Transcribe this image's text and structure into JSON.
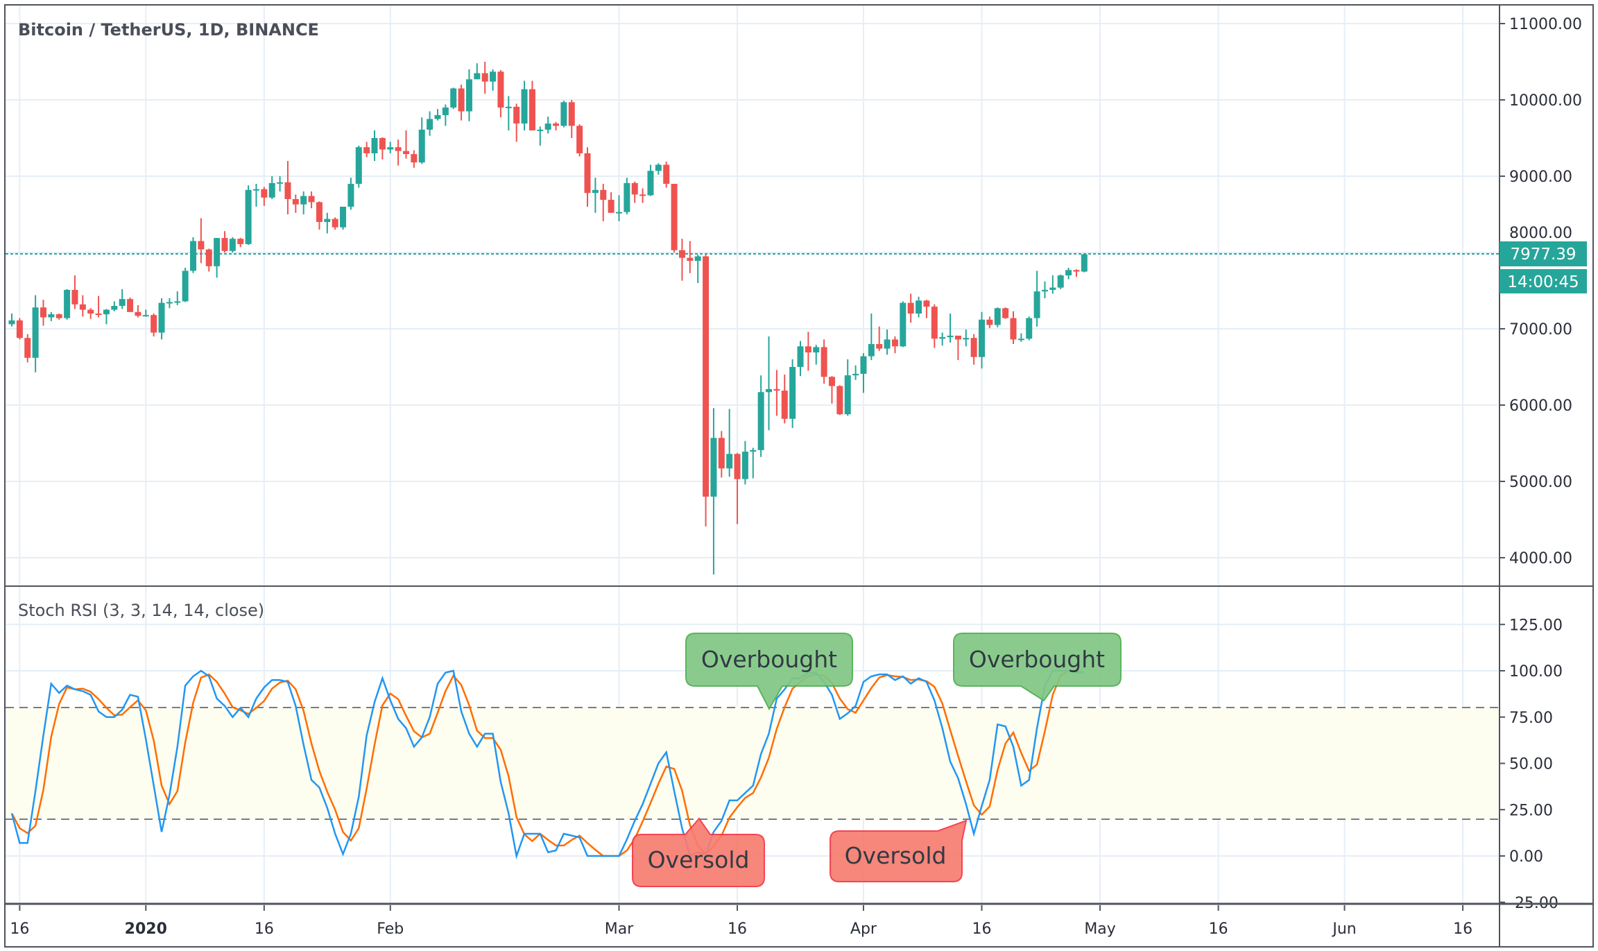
{
  "header": {
    "symbol_title": "Bitcoin / TetherUS, 1D, BINANCE"
  },
  "price_tag": {
    "last_price": "7977.39",
    "countdown": "14:00:45"
  },
  "indicator": {
    "label": "Stoch RSI (3, 3, 14, 14, close)"
  },
  "annotations": {
    "overbought_1": "Overbought",
    "overbought_2": "Overbought",
    "oversold_1": "Oversold",
    "oversold_2": "Oversold"
  },
  "colors": {
    "up": "#26a69a",
    "down": "#ef5350",
    "k_line": "#2196f3",
    "d_line": "#ff6d00",
    "overbought_bg": "#81c784",
    "oversold_bg": "#f77c70"
  },
  "chart_data": [
    {
      "type": "candlestick",
      "title": "Bitcoin / TetherUS, 1D, BINANCE",
      "start_date": "2019-12-15",
      "ylim": [
        3600,
        11200
      ],
      "y_ticks": [
        "11000.00",
        "10000.00",
        "9000.00",
        "8000.00",
        "7000.00",
        "6000.00",
        "5000.00",
        "4000.00"
      ],
      "x_ticks": [
        "16",
        "2020",
        "16",
        "Feb",
        "Mar",
        "16",
        "Apr",
        "16",
        "May",
        "16",
        "Jun",
        "16"
      ],
      "last_price": 7977.39,
      "ohlc": [
        [
          7060,
          7200,
          7030,
          7110
        ],
        [
          7110,
          7140,
          6860,
          6880
        ],
        [
          6880,
          6930,
          6560,
          6620
        ],
        [
          6620,
          7440,
          6430,
          7280
        ],
        [
          7280,
          7380,
          7040,
          7150
        ],
        [
          7150,
          7220,
          7100,
          7190
        ],
        [
          7190,
          7200,
          7120,
          7140
        ],
        [
          7140,
          7520,
          7120,
          7510
        ],
        [
          7510,
          7700,
          7260,
          7320
        ],
        [
          7320,
          7440,
          7160,
          7250
        ],
        [
          7250,
          7270,
          7130,
          7200
        ],
        [
          7200,
          7430,
          7150,
          7190
        ],
        [
          7190,
          7260,
          7060,
          7250
        ],
        [
          7250,
          7360,
          7230,
          7300
        ],
        [
          7300,
          7520,
          7260,
          7390
        ],
        [
          7390,
          7410,
          7220,
          7220
        ],
        [
          7220,
          7310,
          7150,
          7170
        ],
        [
          7170,
          7250,
          7160,
          7180
        ],
        [
          7180,
          7200,
          6900,
          6950
        ],
        [
          6950,
          7400,
          6860,
          7340
        ],
        [
          7340,
          7400,
          7270,
          7350
        ],
        [
          7350,
          7490,
          7310,
          7360
        ],
        [
          7360,
          7800,
          7350,
          7760
        ],
        [
          7760,
          8200,
          7730,
          8150
        ],
        [
          8150,
          8450,
          7860,
          8040
        ],
        [
          8040,
          8050,
          7750,
          7820
        ],
        [
          7820,
          8190,
          7670,
          8190
        ],
        [
          8190,
          8280,
          8000,
          8020
        ],
        [
          8020,
          8200,
          8000,
          8180
        ],
        [
          8180,
          8190,
          8070,
          8110
        ],
        [
          8110,
          8880,
          8100,
          8820
        ],
        [
          8820,
          8900,
          8600,
          8830
        ],
        [
          8830,
          8860,
          8610,
          8720
        ],
        [
          8720,
          9000,
          8700,
          8910
        ],
        [
          8910,
          9000,
          8800,
          8920
        ],
        [
          8920,
          9200,
          8500,
          8700
        ],
        [
          8700,
          8760,
          8520,
          8630
        ],
        [
          8630,
          8800,
          8500,
          8740
        ],
        [
          8740,
          8800,
          8580,
          8660
        ],
        [
          8660,
          8670,
          8300,
          8400
        ],
        [
          8400,
          8520,
          8250,
          8440
        ],
        [
          8440,
          8460,
          8300,
          8330
        ],
        [
          8330,
          8600,
          8300,
          8600
        ],
        [
          8600,
          8980,
          8560,
          8900
        ],
        [
          8900,
          9400,
          8850,
          9380
        ],
        [
          9380,
          9450,
          9250,
          9300
        ],
        [
          9300,
          9600,
          9200,
          9500
        ],
        [
          9500,
          9510,
          9220,
          9350
        ],
        [
          9350,
          9450,
          9300,
          9380
        ],
        [
          9380,
          9480,
          9140,
          9330
        ],
        [
          9330,
          9600,
          9230,
          9290
        ],
        [
          9290,
          9340,
          9110,
          9180
        ],
        [
          9180,
          9770,
          9160,
          9610
        ],
        [
          9610,
          9850,
          9530,
          9750
        ],
        [
          9750,
          9880,
          9730,
          9800
        ],
        [
          9800,
          9940,
          9660,
          9900
        ],
        [
          9900,
          10160,
          9880,
          10150
        ],
        [
          10150,
          10200,
          9730,
          9850
        ],
        [
          9850,
          10400,
          9720,
          10270
        ],
        [
          10270,
          10480,
          10270,
          10350
        ],
        [
          10350,
          10500,
          10080,
          10240
        ],
        [
          10240,
          10400,
          10120,
          10370
        ],
        [
          10370,
          10390,
          9770,
          9900
        ],
        [
          9900,
          10050,
          9600,
          9910
        ],
        [
          9910,
          9950,
          9450,
          9690
        ],
        [
          9690,
          10250,
          9600,
          10140
        ],
        [
          10140,
          10250,
          9600,
          9600
        ],
        [
          9600,
          9650,
          9400,
          9610
        ],
        [
          9610,
          9780,
          9560,
          9690
        ],
        [
          9690,
          9710,
          9600,
          9660
        ],
        [
          9660,
          9990,
          9640,
          9970
        ],
        [
          9970,
          10000,
          9500,
          9660
        ],
        [
          9660,
          9680,
          9260,
          9300
        ],
        [
          9300,
          9380,
          8600,
          8780
        ],
        [
          8780,
          8980,
          8520,
          8820
        ],
        [
          8820,
          8900,
          8410,
          8690
        ],
        [
          8690,
          8790,
          8520,
          8520
        ],
        [
          8520,
          8750,
          8410,
          8530
        ],
        [
          8530,
          8980,
          8500,
          8910
        ],
        [
          8910,
          8930,
          8650,
          8760
        ],
        [
          8760,
          8840,
          8650,
          8750
        ],
        [
          8750,
          9150,
          8740,
          9070
        ],
        [
          9070,
          9170,
          9020,
          9150
        ],
        [
          9150,
          9190,
          8850,
          8900
        ],
        [
          8900,
          8900,
          8000,
          8030
        ],
        [
          8030,
          8180,
          7630,
          7930
        ],
        [
          7930,
          8150,
          7730,
          7890
        ],
        [
          7890,
          7970,
          7600,
          7950
        ],
        [
          7950,
          7970,
          4410,
          4800
        ],
        [
          4800,
          5960,
          3780,
          5570
        ],
        [
          5570,
          5660,
          5050,
          5170
        ],
        [
          5170,
          5950,
          5060,
          5360
        ],
        [
          5360,
          5370,
          4440,
          5030
        ],
        [
          5030,
          5530,
          4960,
          5390
        ],
        [
          5390,
          5440,
          5040,
          5410
        ],
        [
          5410,
          6390,
          5320,
          6170
        ],
        [
          6170,
          6900,
          5670,
          6210
        ],
        [
          6210,
          6460,
          5860,
          6190
        ],
        [
          6190,
          6400,
          5760,
          5820
        ],
        [
          5820,
          6600,
          5700,
          6500
        ],
        [
          6500,
          6840,
          6380,
          6770
        ],
        [
          6770,
          6960,
          6450,
          6690
        ],
        [
          6690,
          6790,
          6530,
          6760
        ],
        [
          6760,
          6860,
          6280,
          6370
        ],
        [
          6370,
          6380,
          6020,
          6250
        ],
        [
          6250,
          6260,
          5870,
          5880
        ],
        [
          5880,
          6600,
          5860,
          6390
        ],
        [
          6390,
          6520,
          6330,
          6410
        ],
        [
          6410,
          6680,
          6160,
          6640
        ],
        [
          6640,
          7200,
          6590,
          6800
        ],
        [
          6800,
          7030,
          6710,
          6740
        ],
        [
          6740,
          6990,
          6660,
          6860
        ],
        [
          6860,
          6900,
          6680,
          6770
        ],
        [
          6770,
          7360,
          6760,
          7340
        ],
        [
          7340,
          7460,
          7080,
          7200
        ],
        [
          7200,
          7420,
          7150,
          7370
        ],
        [
          7370,
          7380,
          7140,
          7290
        ],
        [
          7290,
          7320,
          6750,
          6870
        ],
        [
          6870,
          6950,
          6780,
          6890
        ],
        [
          6890,
          7200,
          6820,
          6910
        ],
        [
          6910,
          6910,
          6590,
          6860
        ],
        [
          6860,
          6990,
          6770,
          6880
        ],
        [
          6880,
          6930,
          6530,
          6630
        ],
        [
          6630,
          7220,
          6480,
          7120
        ],
        [
          7120,
          7160,
          7010,
          7050
        ],
        [
          7050,
          7280,
          7020,
          7270
        ],
        [
          7270,
          7280,
          7130,
          7140
        ],
        [
          7140,
          7230,
          6800,
          6860
        ],
        [
          6860,
          6940,
          6830,
          6870
        ],
        [
          6870,
          7160,
          6850,
          7140
        ],
        [
          7140,
          7760,
          7030,
          7490
        ],
        [
          7490,
          7620,
          7400,
          7510
        ],
        [
          7510,
          7700,
          7460,
          7540
        ],
        [
          7540,
          7710,
          7520,
          7700
        ],
        [
          7700,
          7800,
          7650,
          7770
        ],
        [
          7770,
          7780,
          7680,
          7750
        ],
        [
          7750,
          7980,
          7740,
          7977.39
        ]
      ]
    },
    {
      "type": "line",
      "title": "Stoch RSI (3, 3, 14, 14, close)",
      "ylim": [
        -25,
        135
      ],
      "y_ticks": [
        "125.00",
        "100.00",
        "75.00",
        "50.00",
        "25.00",
        "0.00",
        "-25.00"
      ],
      "bands": {
        "upper": 80,
        "lower": 20
      },
      "d_period": 3,
      "series": [
        {
          "name": "K",
          "values": [
            23,
            7,
            7,
            35,
            65,
            93,
            88,
            92,
            90,
            89,
            87,
            78,
            75,
            75,
            79,
            87,
            86,
            63,
            38,
            13,
            33,
            59,
            92,
            97,
            100,
            97,
            85,
            81,
            75,
            80,
            75,
            85,
            91,
            95,
            95,
            94,
            81,
            60,
            41,
            37,
            26,
            12,
            1,
            12,
            32,
            65,
            83,
            96,
            84,
            74,
            69,
            59,
            64,
            75,
            93,
            99,
            100,
            78,
            66,
            59,
            66,
            66,
            40,
            23,
            0,
            12,
            12,
            12,
            2,
            3,
            12,
            11,
            10,
            0,
            0,
            0,
            0,
            0,
            9,
            19,
            28,
            39,
            50,
            56,
            35,
            15,
            0,
            2,
            1,
            13,
            19,
            30,
            30,
            34,
            38,
            55,
            66,
            85,
            90,
            96,
            96,
            99,
            99,
            94,
            87,
            74,
            77,
            81,
            94,
            97,
            98,
            98,
            95,
            97,
            93,
            96,
            94,
            84,
            69,
            51,
            42,
            28,
            12,
            27,
            41,
            71,
            70,
            59,
            38,
            41,
            69,
            92,
            100,
            100,
            100,
            99,
            99
          ]
        }
      ]
    }
  ]
}
